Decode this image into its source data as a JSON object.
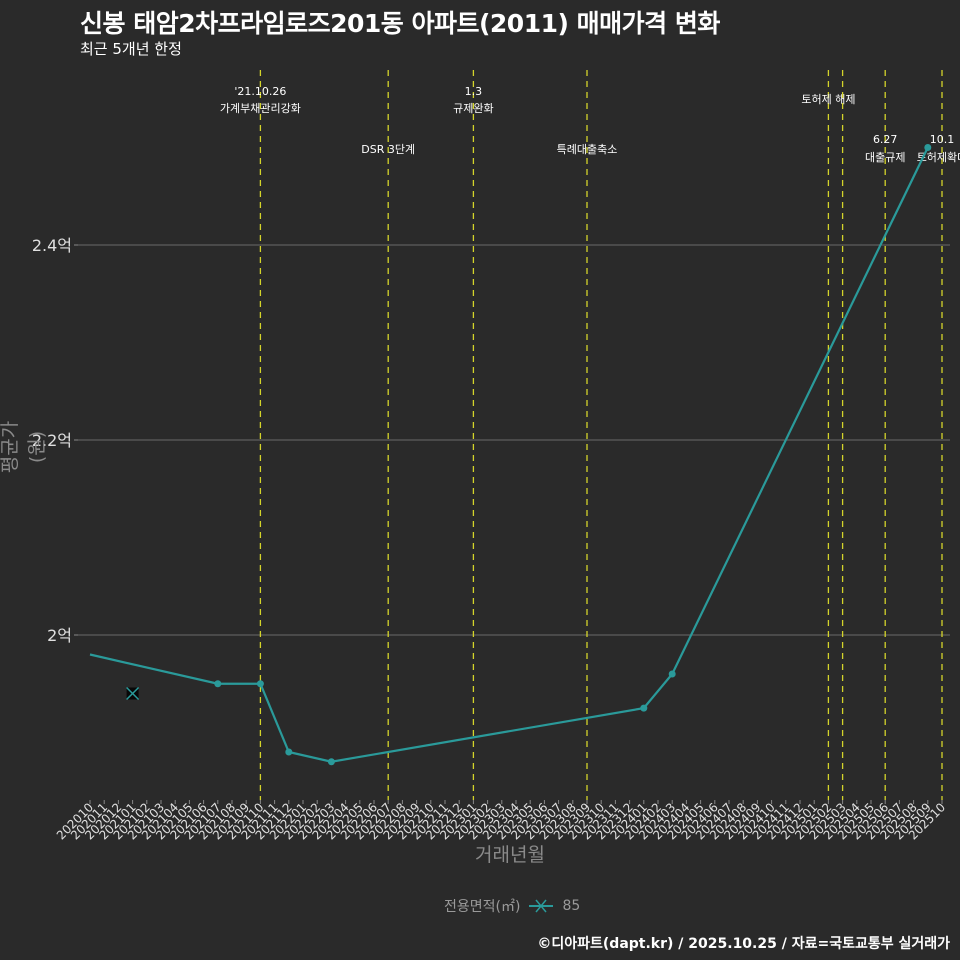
{
  "header": {
    "title": "신봉 태암2차프라임로즈201동 아파트(2011) 매매가격 변화",
    "subtitle": "최근 5개년 한정"
  },
  "axes": {
    "ylabel": "평균가(원)",
    "xlabel": "거래년월"
  },
  "legend": {
    "title": "전용면적(㎡)",
    "item": "85",
    "color": "#2a9a9a"
  },
  "footer": {
    "credit": "©디아파트(dapt.kr) / 2025.10.25 / 자료=국토교통부 실거래가"
  },
  "chart_data": {
    "type": "line",
    "title": "신봉 태암2차프라임로즈201동 아파트(2011) 매매가격 변화",
    "subtitle": "최근 5개년 한정",
    "xlabel": "거래년월",
    "ylabel": "평균가(원)",
    "ylim": [
      1.82,
      2.57
    ],
    "yticks": [
      {
        "value": 2.0,
        "label": "2억"
      },
      {
        "value": 2.2,
        "label": "2.2억"
      },
      {
        "value": 2.4,
        "label": "2.4억"
      }
    ],
    "categories": [
      "202010",
      "202011",
      "202012",
      "202101",
      "202102",
      "202103",
      "202104",
      "202105",
      "202106",
      "202107",
      "202108",
      "202109",
      "202110",
      "202111",
      "202112",
      "202201",
      "202202",
      "202203",
      "202204",
      "202205",
      "202206",
      "202207",
      "202208",
      "202209",
      "202210",
      "202211",
      "202212",
      "202301",
      "202302",
      "202303",
      "202304",
      "202305",
      "202306",
      "202307",
      "202308",
      "202309",
      "202310",
      "202311",
      "202312",
      "202401",
      "202402",
      "202403",
      "202404",
      "202405",
      "202406",
      "202407",
      "202408",
      "202409",
      "202410",
      "202411",
      "202412",
      "202501",
      "202502",
      "202503",
      "202504",
      "202505",
      "202506",
      "202507",
      "202508",
      "202509",
      "202510"
    ],
    "series": [
      {
        "name": "85",
        "color": "#2a9a9a",
        "points": [
          {
            "x": "202010",
            "y": 1.98
          },
          {
            "x": "202107",
            "y": 1.95
          },
          {
            "x": "202110",
            "y": 1.95
          },
          {
            "x": "202112",
            "y": 1.88
          },
          {
            "x": "202203",
            "y": 1.87
          },
          {
            "x": "202401",
            "y": 1.925
          },
          {
            "x": "202403",
            "y": 1.96
          },
          {
            "x": "202509",
            "y": 2.5
          }
        ],
        "outliers": [
          {
            "x": "202101",
            "y": 1.94,
            "marker": "x"
          }
        ]
      }
    ],
    "events": [
      {
        "x": "202110",
        "line1": "'21.10.26",
        "line2": "가계부채관리강화",
        "row": 0
      },
      {
        "x": "202207",
        "line1": "",
        "line2": "DSR 3단계",
        "row": 1
      },
      {
        "x": "202301",
        "line1": "1.3",
        "line2": "규제완화",
        "row": 0
      },
      {
        "x": "202309",
        "line1": "",
        "line2": "특례대출축소",
        "row": 1
      },
      {
        "x": "202502",
        "line1": "",
        "line2": "토허제 해제",
        "row": 0
      },
      {
        "x": "202503",
        "line1": "",
        "line2": "",
        "row": 0
      },
      {
        "x": "202506",
        "line1": "6.27",
        "line2": "대출규제",
        "row": 1
      },
      {
        "x": "202510",
        "line1": "10.1",
        "line2": "토허제확대",
        "row": 1
      }
    ],
    "grid": true,
    "legend_position": "bottom"
  }
}
